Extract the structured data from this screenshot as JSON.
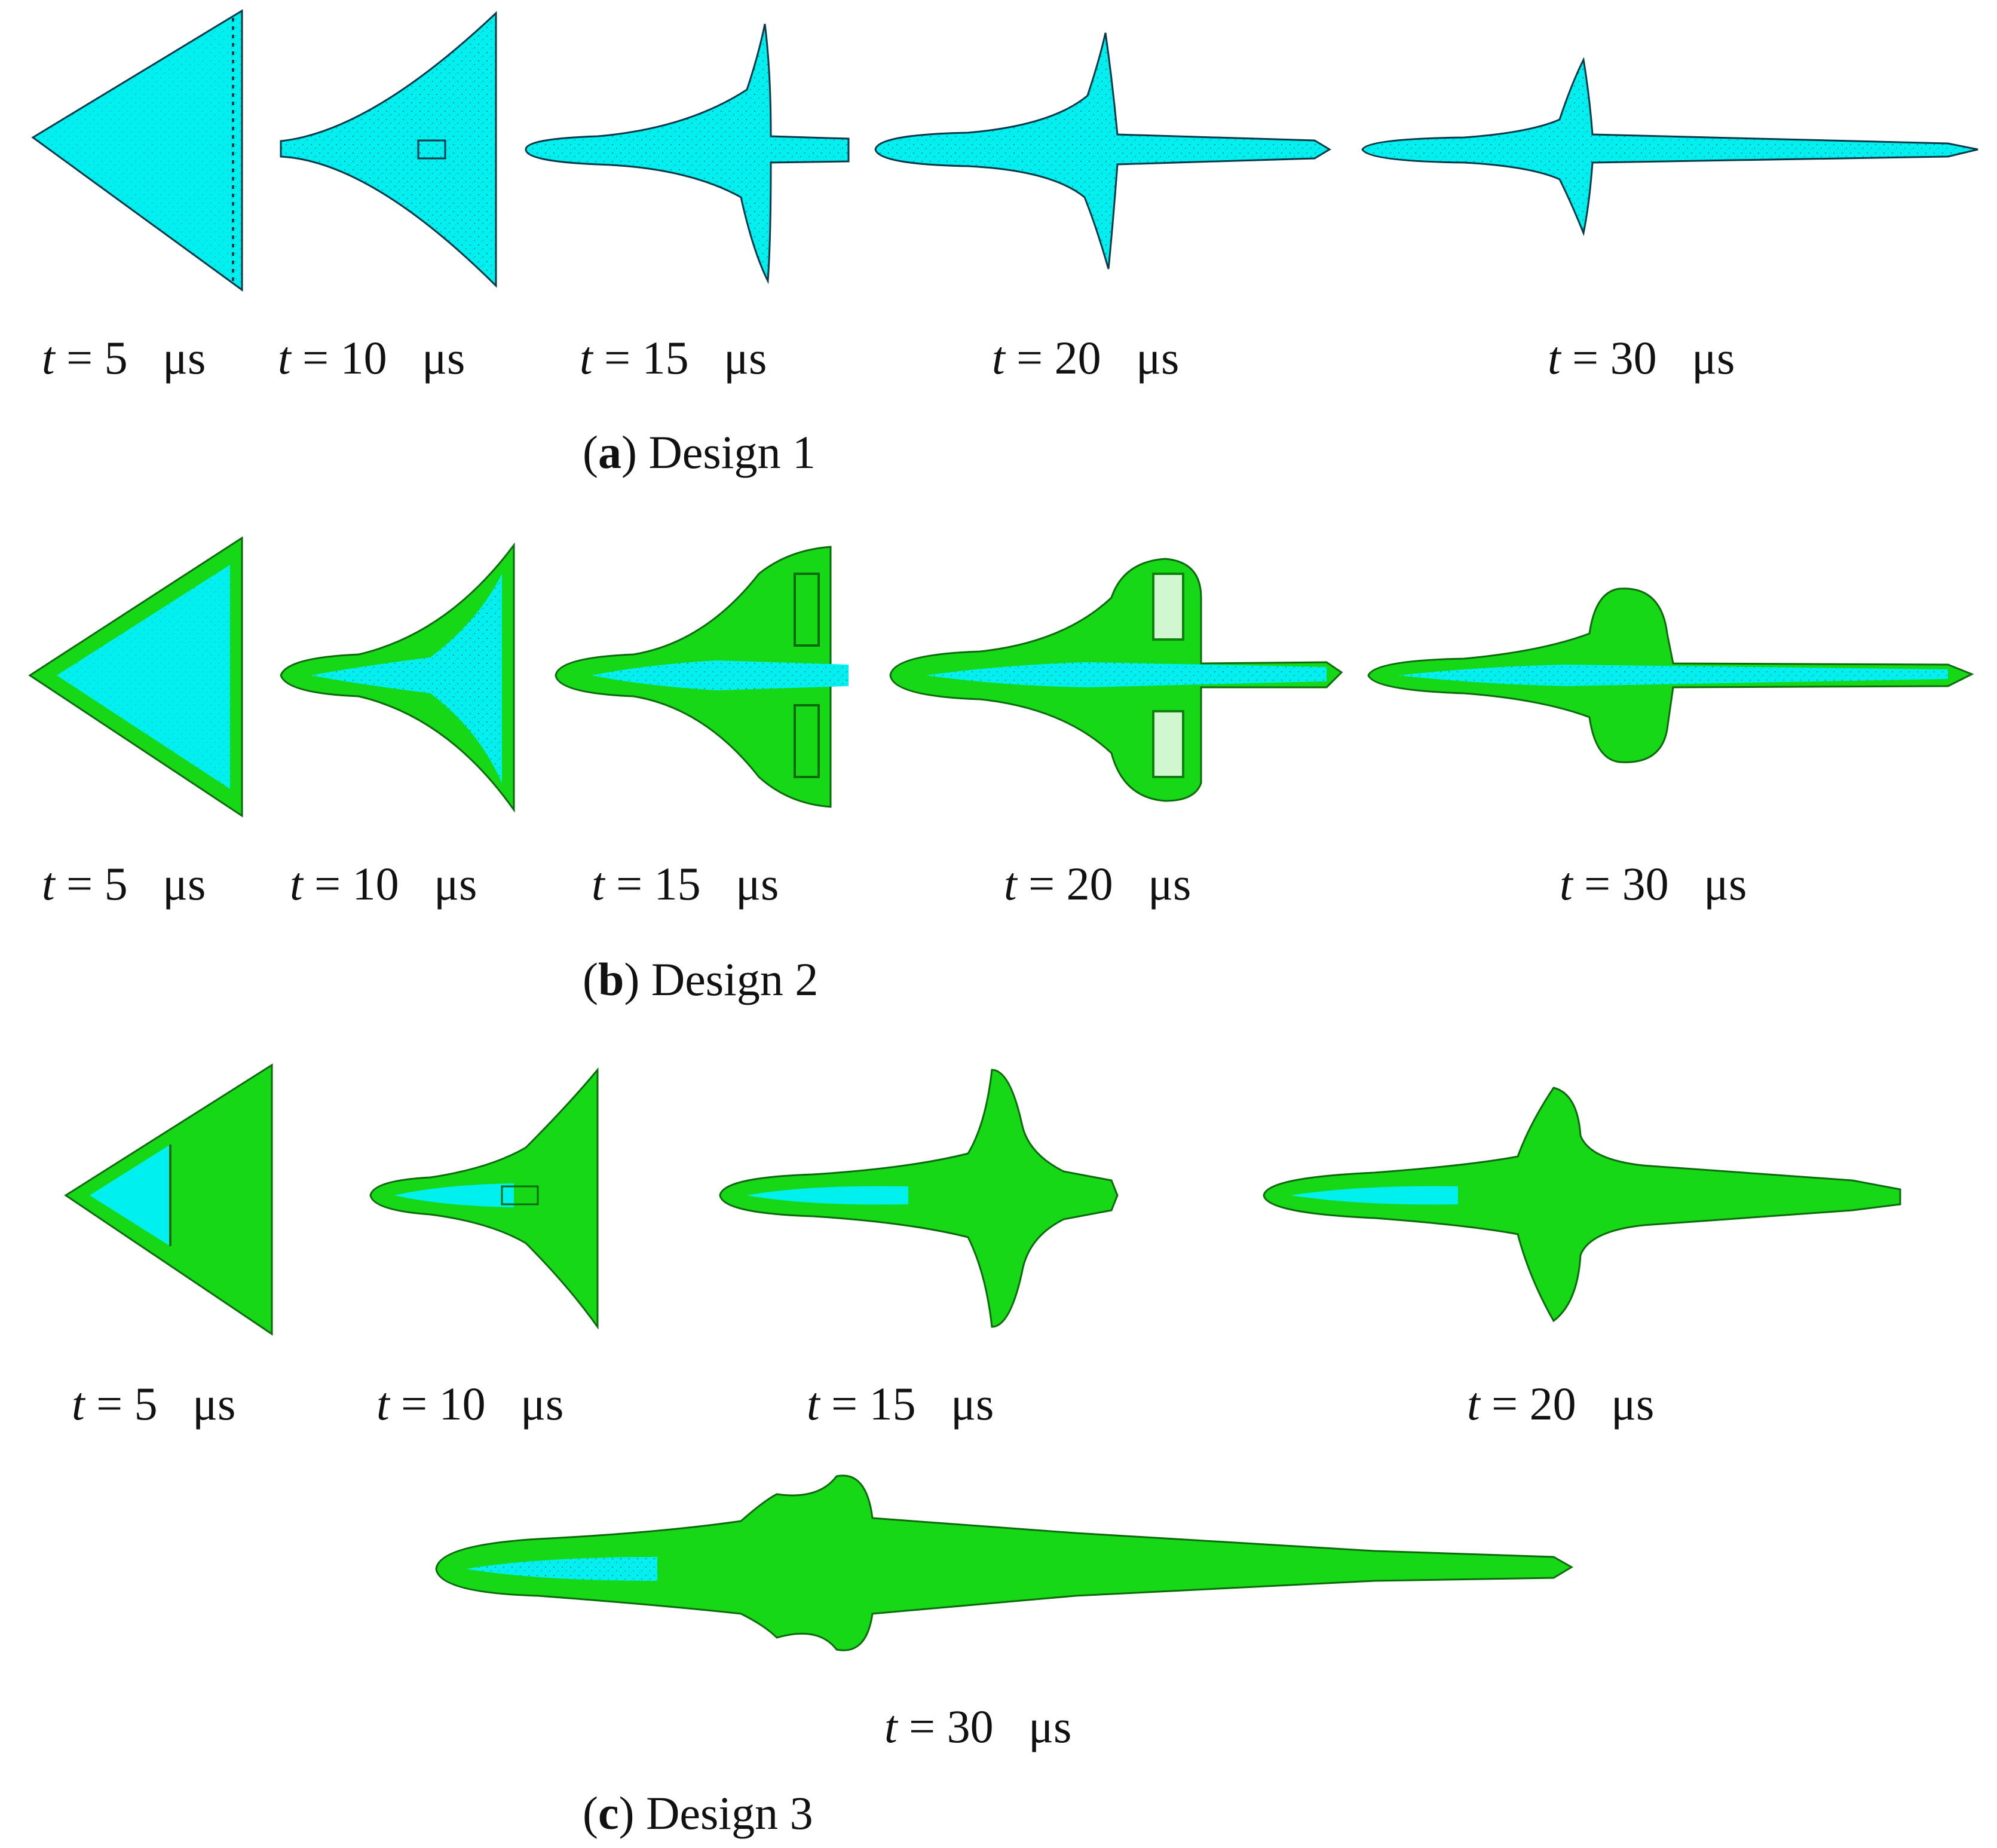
{
  "colors": {
    "cyan": "#00f0f0",
    "green": "#17d817",
    "dark": "#0a3a4a",
    "edge": "#0b6b0b"
  },
  "designs": [
    {
      "caption_letter": "a",
      "caption_text": "Design 1",
      "frames": [
        {
          "t": "t",
          "eq": " = ",
          "value": "5",
          "unit": "μs"
        },
        {
          "t": "t",
          "eq": " = ",
          "value": "10",
          "unit": "μs"
        },
        {
          "t": "t",
          "eq": " = ",
          "value": "15",
          "unit": "μs"
        },
        {
          "t": "t",
          "eq": " = ",
          "value": "20",
          "unit": "μs"
        },
        {
          "t": "t",
          "eq": " = ",
          "value": "30",
          "unit": "μs"
        }
      ]
    },
    {
      "caption_letter": "b",
      "caption_text": "Design 2",
      "frames": [
        {
          "t": "t",
          "eq": " = ",
          "value": "5",
          "unit": "μs"
        },
        {
          "t": "t",
          "eq": " = ",
          "value": "10",
          "unit": "μs"
        },
        {
          "t": "t",
          "eq": " = ",
          "value": "15",
          "unit": "μs"
        },
        {
          "t": "t",
          "eq": " = ",
          "value": "20",
          "unit": "μs"
        },
        {
          "t": "t",
          "eq": " = ",
          "value": "30",
          "unit": "μs"
        }
      ]
    },
    {
      "caption_letter": "c",
      "caption_text": "Design 3",
      "frames": [
        {
          "t": "t",
          "eq": " = ",
          "value": "5",
          "unit": "μs"
        },
        {
          "t": "t",
          "eq": " = ",
          "value": "10",
          "unit": "μs"
        },
        {
          "t": "t",
          "eq": " = ",
          "value": "15",
          "unit": "μs"
        },
        {
          "t": "t",
          "eq": " = ",
          "value": "20",
          "unit": "μs"
        },
        {
          "t": "t",
          "eq": " = ",
          "value": "30",
          "unit": "μs"
        }
      ]
    }
  ]
}
